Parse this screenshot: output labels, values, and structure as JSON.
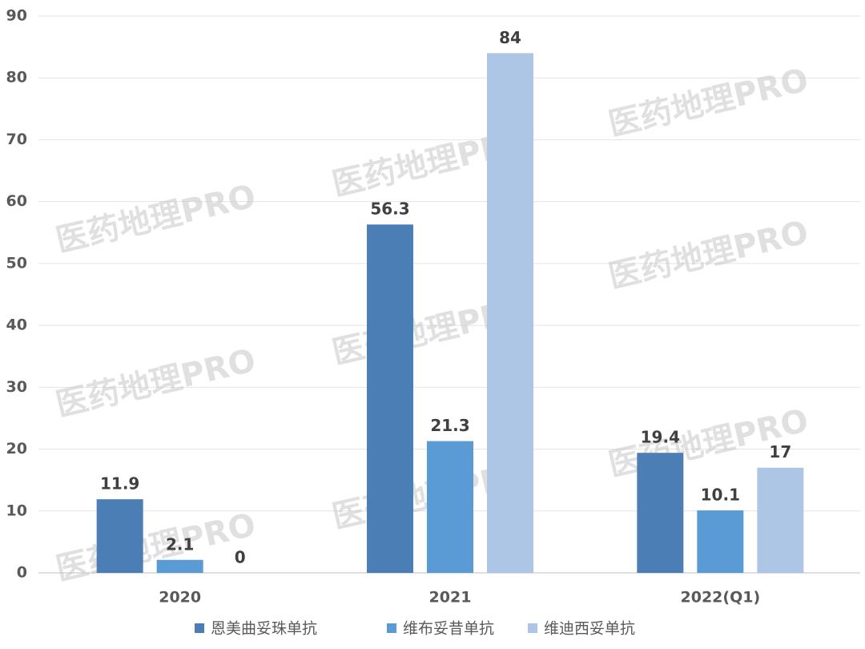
{
  "chart_data": {
    "type": "bar",
    "categories": [
      "2020",
      "2021",
      "2022(Q1)"
    ],
    "series": [
      {
        "name": "恩美曲妥珠单抗",
        "color": "#4a7eb4",
        "values": [
          11.9,
          56.3,
          19.4
        ]
      },
      {
        "name": "维布妥昔单抗",
        "color": "#5b9bd5",
        "values": [
          2.1,
          21.3,
          10.1
        ]
      },
      {
        "name": "维迪西妥单抗",
        "color": "#adc6e5",
        "values": [
          0,
          84,
          17
        ]
      }
    ],
    "ylim": [
      0,
      90
    ],
    "yticks": [
      0,
      10,
      20,
      30,
      40,
      50,
      60,
      70,
      80,
      90
    ],
    "grid": true,
    "legend": "bottom",
    "watermark": "医药地理PRO"
  }
}
